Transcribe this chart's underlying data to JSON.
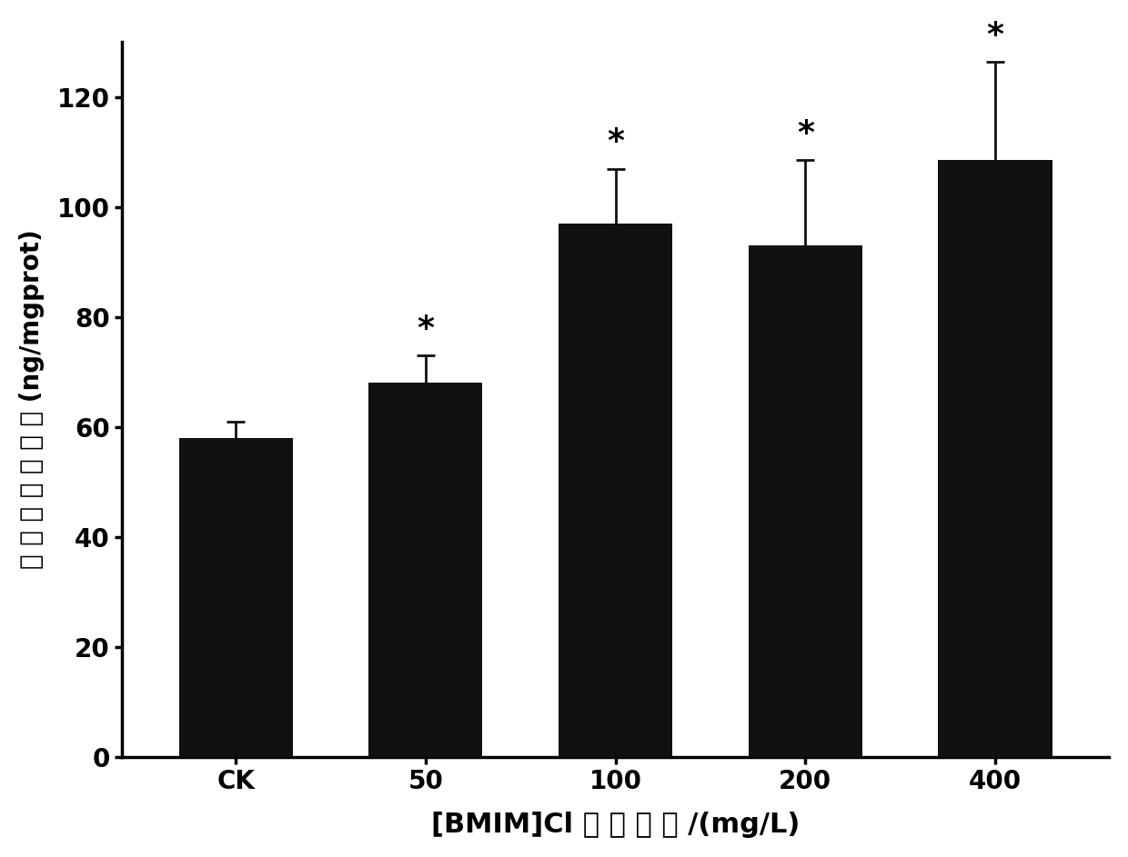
{
  "categories": [
    "CK",
    "50",
    "100",
    "200",
    "400"
  ],
  "values": [
    58.0,
    68.0,
    97.0,
    93.0,
    108.5
  ],
  "errors": [
    3.0,
    5.0,
    10.0,
    15.5,
    18.0
  ],
  "bar_color": "#111111",
  "error_color": "#111111",
  "bar_width": 0.6,
  "xlabel": "[BMIM]Cl 暴 露 浓 度 /(mg/L)",
  "ylabel": "膜 高 血 糖 素 含 量 (ng/mgprot)",
  "ylim": [
    0,
    130
  ],
  "yticks": [
    0,
    20,
    40,
    60,
    80,
    100,
    120
  ],
  "significance": [
    false,
    true,
    true,
    true,
    true
  ],
  "sig_marker": "*",
  "tick_fontsize": 20,
  "sig_fontsize": 26,
  "background_color": "#ffffff",
  "xlabel_fontsize": 22,
  "ylabel_fontsize": 20
}
